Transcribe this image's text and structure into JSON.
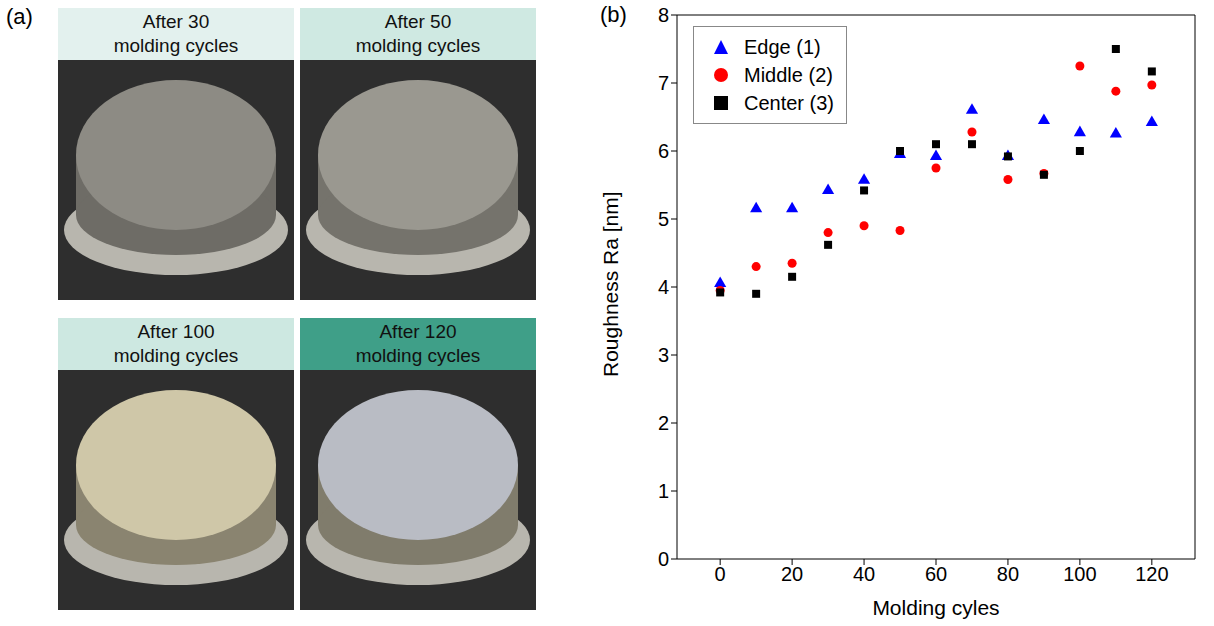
{
  "panels": {
    "a": {
      "label": "(a)",
      "captions": [
        "After 30 molding cycles",
        "After 50 molding cycles",
        "After 100 molding cycles",
        "After 120 molding cycles"
      ]
    },
    "b": {
      "label": "(b)"
    }
  },
  "chart_data": {
    "type": "scatter",
    "x_label": "Molding cyles",
    "y_label": "Roughness Ra [nm]",
    "x": [
      0,
      10,
      20,
      30,
      40,
      50,
      60,
      70,
      80,
      90,
      100,
      110,
      120
    ],
    "series": [
      {
        "name": "Edge (1)",
        "color": "#0000ff",
        "marker": "triangle",
        "values": [
          4.05,
          5.15,
          5.15,
          5.42,
          5.57,
          5.95,
          5.92,
          6.6,
          5.92,
          6.45,
          6.27,
          6.25,
          6.42
        ]
      },
      {
        "name": "Middle (2)",
        "color": "#ff0000",
        "marker": "circle",
        "values": [
          3.95,
          4.3,
          4.35,
          4.8,
          4.9,
          4.83,
          5.75,
          6.28,
          5.58,
          5.67,
          7.25,
          6.88,
          6.97
        ]
      },
      {
        "name": "Center (3)",
        "color": "#000000",
        "marker": "square",
        "values": [
          3.92,
          3.9,
          4.15,
          4.62,
          5.42,
          6.0,
          6.1,
          6.1,
          5.92,
          5.65,
          6.0,
          7.5,
          7.17
        ]
      }
    ],
    "xlim": [
      -12,
      132
    ],
    "xticks": [
      0,
      20,
      40,
      60,
      80,
      100,
      120
    ],
    "ylim": [
      0,
      8
    ],
    "yticks": [
      0,
      1,
      2,
      3,
      4,
      5,
      6,
      7,
      8
    ],
    "legend": "upper left"
  }
}
